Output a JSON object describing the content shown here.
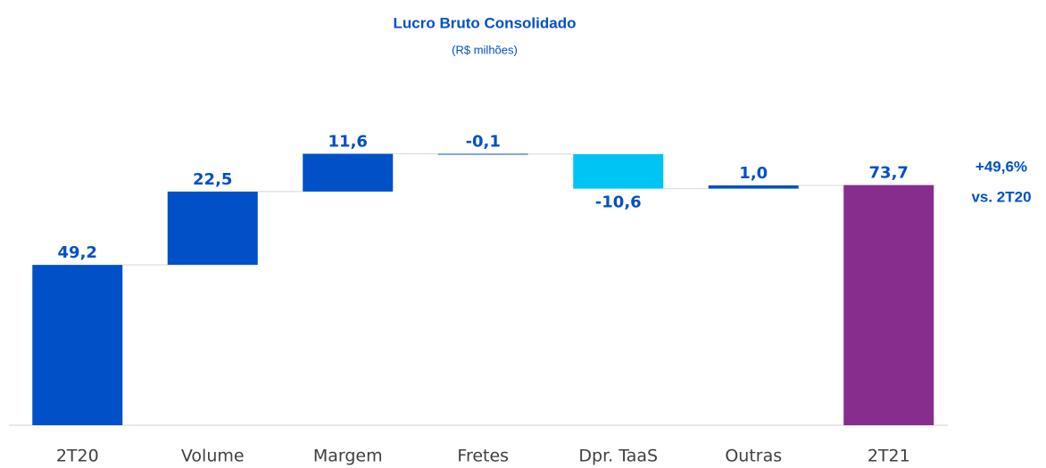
{
  "chart_data": {
    "type": "waterfall",
    "title": "Lucro Bruto Consolidado",
    "subtitle": "(R$ milhões)",
    "categories": [
      "2T20",
      "Volume",
      "Margem",
      "Fretes",
      "Dpr. TaaS",
      "Outras",
      "2T21"
    ],
    "values": [
      49.2,
      22.5,
      11.6,
      -0.1,
      -10.6,
      1.0,
      73.7
    ],
    "value_labels": [
      "49,2",
      "22,5",
      "11,6",
      "-0,1",
      "-10,6",
      "1,0",
      "73,7"
    ],
    "colors": [
      "#0050c8",
      "#0050c8",
      "#0050c8",
      "#0050c8",
      "#00c4f4",
      "#0050c8",
      "#862d8e"
    ],
    "ylim": [
      0,
      90
    ],
    "annotations": [
      "+49,6%",
      "vs. 2T20"
    ]
  }
}
